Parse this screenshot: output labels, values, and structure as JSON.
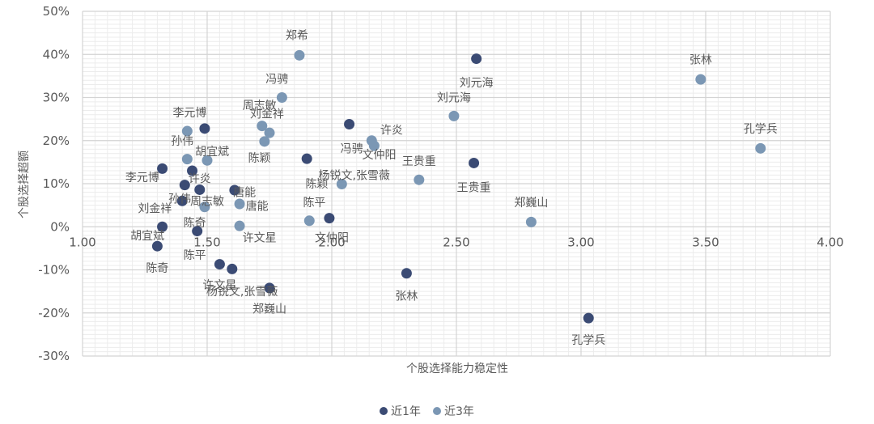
{
  "chart_data": {
    "type": "scatter",
    "xlabel": "个股选择能力稳定性",
    "ylabel": "个股选择超额",
    "xlim": [
      1.0,
      4.0
    ],
    "ylim": [
      -0.3,
      0.5
    ],
    "x_ticks": [
      "1.00",
      "1.50",
      "2.00",
      "2.50",
      "3.00",
      "3.50",
      "4.00"
    ],
    "y_ticks": [
      "-30%",
      "-20%",
      "-10%",
      "0%",
      "10%",
      "20%",
      "30%",
      "40%",
      "50%"
    ],
    "grid": true,
    "legend_position": "bottom",
    "series": [
      {
        "name": "近1年",
        "color": "#3b4b74",
        "points": [
          {
            "label": "刘元海",
            "x": 2.58,
            "y": 0.39
          },
          {
            "label": "许炎",
            "x": 2.07,
            "y": 0.238
          },
          {
            "label": "李元博",
            "x": 1.49,
            "y": 0.228
          },
          {
            "label": "文仲阳",
            "x": 1.9,
            "y": 0.158
          },
          {
            "label": "王贵重",
            "x": 2.57,
            "y": 0.148
          },
          {
            "label": "李元博",
            "x": 1.32,
            "y": 0.135
          },
          {
            "label": "许炎",
            "x": 1.44,
            "y": 0.13
          },
          {
            "label": "胡宜斌",
            "x": 1.41,
            "y": 0.097
          },
          {
            "label": "孙伟",
            "x": 1.47,
            "y": 0.086
          },
          {
            "label": "唐能",
            "x": 1.61,
            "y": 0.085
          },
          {
            "label": "刘金祥",
            "x": 1.4,
            "y": 0.06
          },
          {
            "label": "文仲阳",
            "x": 1.99,
            "y": 0.02
          },
          {
            "label": "胡宜斌",
            "x": 1.32,
            "y": 0.0
          },
          {
            "label": "陈平",
            "x": 1.46,
            "y": -0.01
          },
          {
            "label": "陈奇",
            "x": 1.3,
            "y": -0.045
          },
          {
            "label": "许文星",
            "x": 1.55,
            "y": -0.087
          },
          {
            "label": "杨锐文,张雪薇",
            "x": 1.6,
            "y": -0.098
          },
          {
            "label": "张林",
            "x": 2.3,
            "y": -0.108
          },
          {
            "label": "郑巍山",
            "x": 1.75,
            "y": -0.142
          },
          {
            "label": "孔学兵",
            "x": 3.03,
            "y": -0.212
          }
        ]
      },
      {
        "name": "近3年",
        "color": "#7b97b4",
        "points": [
          {
            "label": "郑希",
            "x": 1.87,
            "y": 0.398
          },
          {
            "label": "张林",
            "x": 3.48,
            "y": 0.342
          },
          {
            "label": "冯骋",
            "x": 1.8,
            "y": 0.3
          },
          {
            "label": "刘元海",
            "x": 2.49,
            "y": 0.257
          },
          {
            "label": "周志敏",
            "x": 1.72,
            "y": 0.234
          },
          {
            "label": "刘金祥",
            "x": 1.75,
            "y": 0.218
          },
          {
            "label": "李元博",
            "x": 1.42,
            "y": 0.222
          },
          {
            "label": "冯骋",
            "x": 2.16,
            "y": 0.2
          },
          {
            "label": "文仲阳",
            "x": 2.17,
            "y": 0.188
          },
          {
            "label": "陈颖",
            "x": 1.73,
            "y": 0.198
          },
          {
            "label": "孔学兵",
            "x": 3.72,
            "y": 0.182
          },
          {
            "label": "孙伟",
            "x": 1.42,
            "y": 0.157
          },
          {
            "label": "胡宜斌",
            "x": 1.5,
            "y": 0.154
          },
          {
            "label": "王贵重",
            "x": 2.35,
            "y": 0.109
          },
          {
            "label": "杨锐文,张雪薇",
            "x": 2.04,
            "y": 0.099
          },
          {
            "label": "唐能",
            "x": 1.63,
            "y": 0.053
          },
          {
            "label": "周志敏",
            "x": 1.49,
            "y": 0.046
          },
          {
            "label": "陈平",
            "x": 1.91,
            "y": 0.014
          },
          {
            "label": "郑巍山",
            "x": 2.8,
            "y": 0.011
          },
          {
            "label": "许文星",
            "x": 1.63,
            "y": 0.002
          }
        ]
      }
    ],
    "labels": [
      {
        "text": "郑希",
        "x": 1.86,
        "y": 0.445
      },
      {
        "text": "张林",
        "x": 3.48,
        "y": 0.388
      },
      {
        "text": "刘元海",
        "x": 2.58,
        "y": 0.335
      },
      {
        "text": "冯骋",
        "x": 1.78,
        "y": 0.343
      },
      {
        "text": "刘元海",
        "x": 2.49,
        "y": 0.3
      },
      {
        "text": "周志敏",
        "x": 1.71,
        "y": 0.282
      },
      {
        "text": "李元博",
        "x": 1.43,
        "y": 0.265
      },
      {
        "text": "刘金祥",
        "x": 1.74,
        "y": 0.262
      },
      {
        "text": "孔学兵",
        "x": 3.72,
        "y": 0.228
      },
      {
        "text": "许炎",
        "x": 2.24,
        "y": 0.225
      },
      {
        "text": "孙伟",
        "x": 1.4,
        "y": 0.2
      },
      {
        "text": "冯骋",
        "x": 2.08,
        "y": 0.182
      },
      {
        "text": "胡宜斌",
        "x": 1.52,
        "y": 0.175
      },
      {
        "text": "文仲阳",
        "x": 2.19,
        "y": 0.168
      },
      {
        "text": "陈颖",
        "x": 1.71,
        "y": 0.16
      },
      {
        "text": "王贵重",
        "x": 2.35,
        "y": 0.153
      },
      {
        "text": "李元博",
        "x": 1.24,
        "y": 0.115
      },
      {
        "text": "许炎",
        "x": 1.47,
        "y": 0.112
      },
      {
        "text": "杨锐文,张雪薇",
        "x": 2.09,
        "y": 0.12
      },
      {
        "text": "陈颖",
        "x": 1.94,
        "y": 0.1
      },
      {
        "text": "王贵重",
        "x": 2.57,
        "y": 0.092
      },
      {
        "text": "唐能",
        "x": 1.65,
        "y": 0.08
      },
      {
        "text": "孙伟",
        "x": 1.39,
        "y": 0.065
      },
      {
        "text": "周志敏",
        "x": 1.5,
        "y": 0.06
      },
      {
        "text": "陈平",
        "x": 1.93,
        "y": 0.057
      },
      {
        "text": "郑巍山",
        "x": 2.8,
        "y": 0.057
      },
      {
        "text": "唐能",
        "x": 1.7,
        "y": 0.048
      },
      {
        "text": "刘金祥",
        "x": 1.29,
        "y": 0.043
      },
      {
        "text": "陈奇",
        "x": 1.45,
        "y": 0.01
      },
      {
        "text": "许文星",
        "x": 1.71,
        "y": -0.025
      },
      {
        "text": "胡宜斌",
        "x": 1.26,
        "y": -0.02
      },
      {
        "text": "文仲阳",
        "x": 2.0,
        "y": -0.025
      },
      {
        "text": "陈平",
        "x": 1.45,
        "y": -0.065
      },
      {
        "text": "陈奇",
        "x": 1.3,
        "y": -0.095
      },
      {
        "text": "许文星",
        "x": 1.55,
        "y": -0.135
      },
      {
        "text": "杨锐文,张雪薇",
        "x": 1.64,
        "y": -0.15
      },
      {
        "text": "张林",
        "x": 2.3,
        "y": -0.16
      },
      {
        "text": "郑巍山",
        "x": 1.75,
        "y": -0.19
      },
      {
        "text": "孔学兵",
        "x": 3.03,
        "y": -0.262
      }
    ]
  }
}
